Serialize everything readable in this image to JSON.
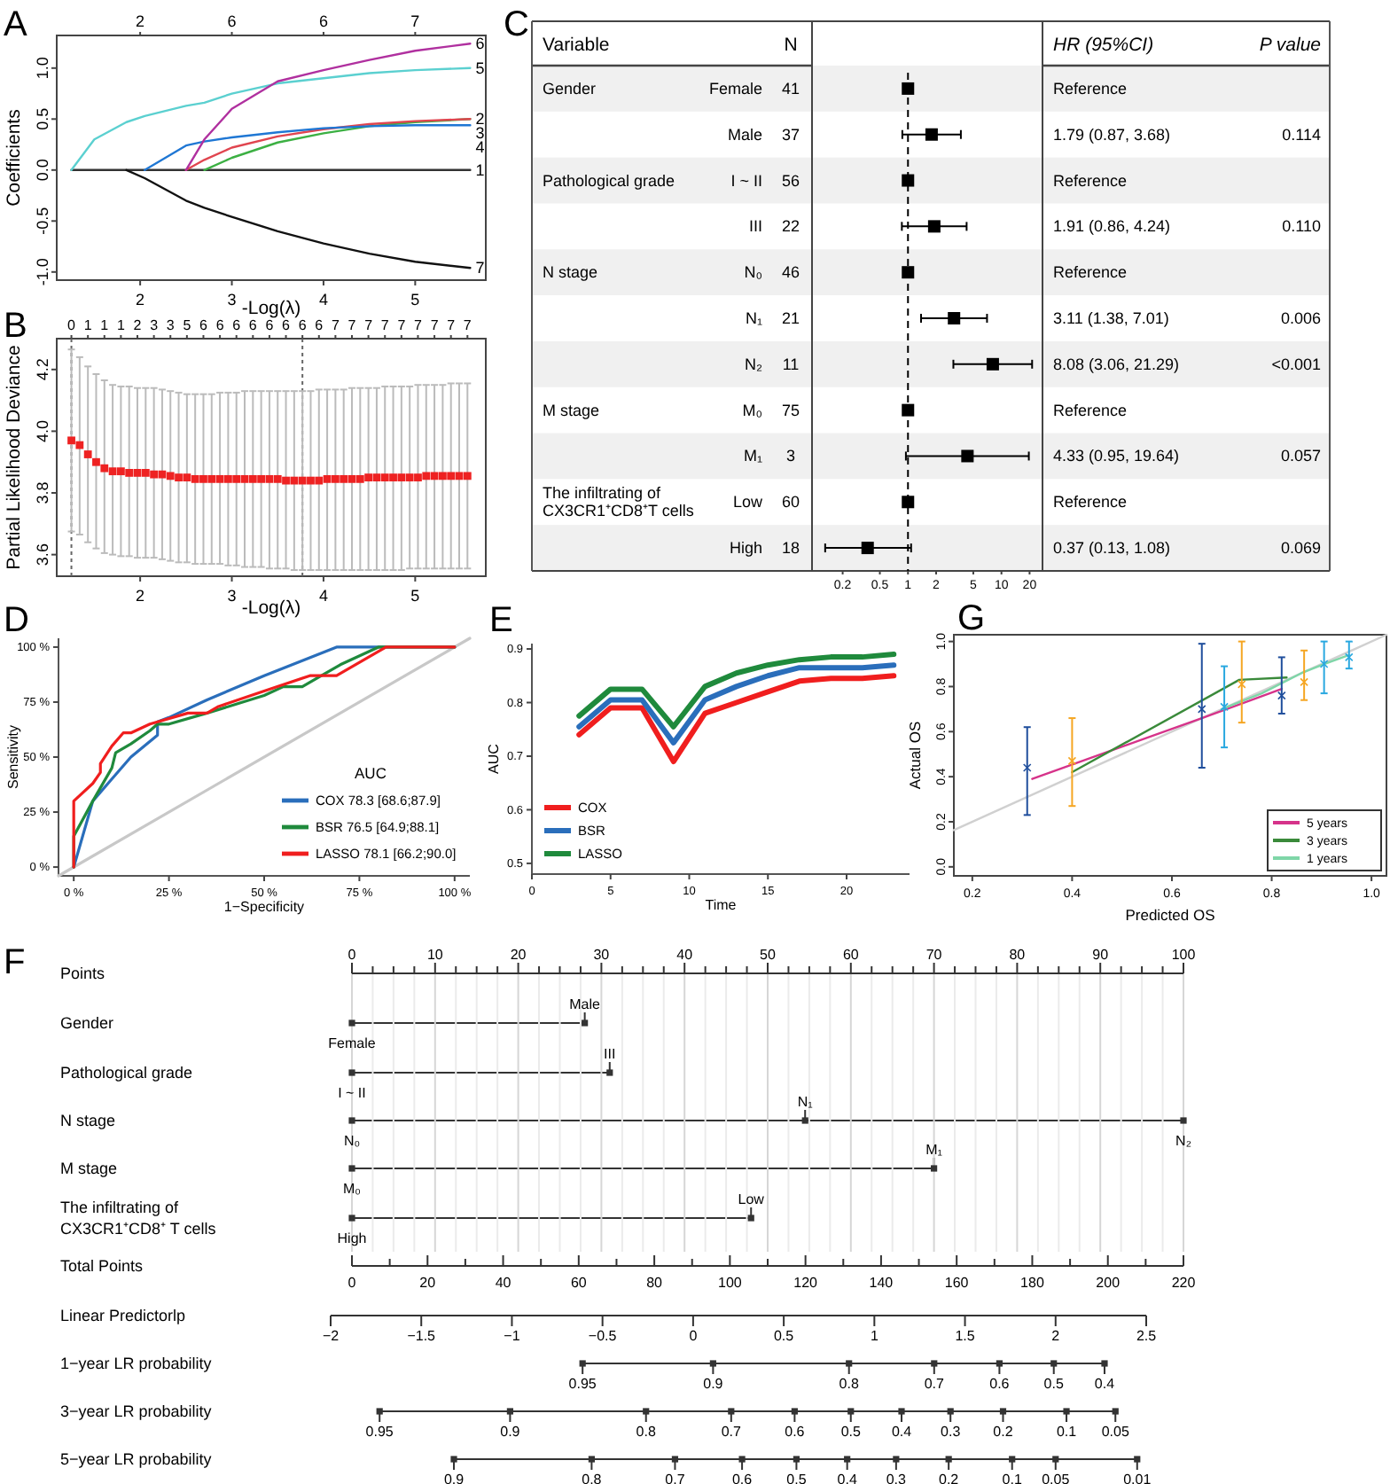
{
  "chart_data": [
    {
      "type": "line",
      "title": "A",
      "xlabel": "-Log(λ)",
      "ylabel": "Coefficients",
      "x": [
        1.25,
        1.5,
        1.85,
        2.05,
        2.5,
        2.7,
        3.0,
        3.5,
        4.0,
        4.5,
        5.0,
        5.6
      ],
      "series": [
        {
          "name": "1",
          "color": "#333333",
          "values": [
            0,
            0,
            0,
            0,
            0,
            0,
            0,
            0,
            0,
            0,
            0,
            0
          ]
        },
        {
          "name": "2",
          "color": "#3cb043",
          "values": [
            null,
            null,
            null,
            null,
            null,
            0,
            0.12,
            0.27,
            0.36,
            0.43,
            0.47,
            0.5
          ]
        },
        {
          "name": "3",
          "color": "#e0454f",
          "values": [
            null,
            null,
            null,
            null,
            0,
            0.1,
            0.22,
            0.33,
            0.4,
            0.45,
            0.48,
            0.5
          ]
        },
        {
          "name": "4",
          "color": "#1f77d4",
          "values": [
            null,
            null,
            null,
            0,
            0.24,
            0.28,
            0.32,
            0.37,
            0.41,
            0.43,
            0.44,
            0.44
          ]
        },
        {
          "name": "5",
          "color": "#5bd0d0",
          "values": [
            0,
            0.3,
            0.47,
            0.53,
            0.63,
            0.66,
            0.75,
            0.85,
            0.9,
            0.95,
            0.98,
            1.0
          ]
        },
        {
          "name": "6",
          "color": "#b0309f",
          "values": [
            null,
            null,
            null,
            null,
            0,
            0.3,
            0.6,
            0.87,
            0.98,
            1.08,
            1.17,
            1.24
          ]
        },
        {
          "name": "7",
          "color": "#111111",
          "values": [
            null,
            null,
            0,
            -0.08,
            -0.3,
            -0.37,
            -0.46,
            -0.6,
            -0.72,
            -0.82,
            -0.9,
            -0.96
          ]
        }
      ],
      "xlim": [
        1.09,
        5.77
      ],
      "ylim": [
        -1.08,
        1.32
      ],
      "xticks": [
        2,
        3,
        4,
        5
      ],
      "yticks": [
        {
          "value": -1,
          "label": "-1.0"
        },
        {
          "value": -0.5,
          "label": "-0.5"
        },
        {
          "value": 0,
          "label": "0.0"
        },
        {
          "value": 0.5,
          "label": "0.5"
        },
        {
          "value": 1,
          "label": "1.0"
        }
      ],
      "annotations": [
        "2",
        "6",
        "6",
        "7"
      ]
    },
    {
      "type": "scatter",
      "title": "B",
      "xlabel": "-Log(λ)",
      "ylabel": "Partial Likelihood Deviance",
      "marker": "square",
      "x": [
        1.25,
        1.34,
        1.43,
        1.52,
        1.61,
        1.7,
        1.79,
        1.88,
        1.97,
        2.06,
        2.15,
        2.24,
        2.33,
        2.42,
        2.51,
        2.6,
        2.69,
        2.78,
        2.87,
        2.96,
        3.05,
        3.14,
        3.23,
        3.32,
        3.41,
        3.5,
        3.59,
        3.68,
        3.77,
        3.86,
        3.95,
        4.04,
        4.13,
        4.22,
        4.31,
        4.4,
        4.49,
        4.58,
        4.67,
        4.76,
        4.85,
        4.94,
        5.03,
        5.12,
        5.21,
        5.3,
        5.39,
        5.48,
        5.57
      ],
      "series": [
        {
          "color": "#ee2222",
          "values": [
            3.97,
            3.955,
            3.925,
            3.9,
            3.88,
            3.87,
            3.87,
            3.865,
            3.865,
            3.865,
            3.86,
            3.86,
            3.855,
            3.85,
            3.85,
            3.845,
            3.845,
            3.845,
            3.845,
            3.845,
            3.845,
            3.845,
            3.845,
            3.845,
            3.845,
            3.845,
            3.84,
            3.84,
            3.84,
            3.84,
            3.84,
            3.845,
            3.845,
            3.845,
            3.845,
            3.845,
            3.85,
            3.85,
            3.85,
            3.85,
            3.85,
            3.85,
            3.85,
            3.855,
            3.855,
            3.855,
            3.855,
            3.855,
            3.855
          ],
          "errors": [
            [
              3.675,
              4.265
            ],
            [
              3.665,
              4.24
            ],
            [
              3.64,
              4.21
            ],
            [
              3.62,
              4.185
            ],
            [
              3.605,
              4.165
            ],
            [
              3.6,
              4.15
            ],
            [
              3.595,
              4.145
            ],
            [
              3.595,
              4.145
            ],
            [
              3.59,
              4.14
            ],
            [
              3.59,
              4.14
            ],
            [
              3.59,
              4.14
            ],
            [
              3.585,
              4.135
            ],
            [
              3.58,
              4.13
            ],
            [
              3.575,
              4.125
            ],
            [
              3.575,
              4.12
            ],
            [
              3.57,
              4.12
            ],
            [
              3.57,
              4.12
            ],
            [
              3.57,
              4.12
            ],
            [
              3.57,
              4.125
            ],
            [
              3.565,
              4.125
            ],
            [
              3.565,
              4.125
            ],
            [
              3.56,
              4.13
            ],
            [
              3.56,
              4.13
            ],
            [
              3.56,
              4.13
            ],
            [
              3.555,
              4.13
            ],
            [
              3.555,
              4.13
            ],
            [
              3.555,
              4.13
            ],
            [
              3.55,
              4.13
            ],
            [
              3.55,
              4.13
            ],
            [
              3.55,
              4.13
            ],
            [
              3.55,
              4.135
            ],
            [
              3.55,
              4.135
            ],
            [
              3.55,
              4.135
            ],
            [
              3.55,
              4.135
            ],
            [
              3.55,
              4.14
            ],
            [
              3.55,
              4.14
            ],
            [
              3.55,
              4.14
            ],
            [
              3.55,
              4.14
            ],
            [
              3.55,
              4.145
            ],
            [
              3.55,
              4.145
            ],
            [
              3.55,
              4.145
            ],
            [
              3.555,
              4.145
            ],
            [
              3.555,
              4.15
            ],
            [
              3.555,
              4.15
            ],
            [
              3.555,
              4.15
            ],
            [
              3.555,
              4.15
            ],
            [
              3.555,
              4.155
            ],
            [
              3.555,
              4.155
            ],
            [
              3.555,
              4.155
            ]
          ]
        }
      ],
      "xlim": [
        1.09,
        5.77
      ],
      "ylim": [
        3.53,
        4.3
      ],
      "xticks": [
        2,
        3,
        4,
        5
      ],
      "yticks": [
        {
          "value": 3.6,
          "label": "3.6"
        },
        {
          "value": 3.8,
          "label": "3.8"
        },
        {
          "value": 4.0,
          "label": "4.0"
        },
        {
          "value": 4.2,
          "label": "4.2"
        }
      ],
      "annotations": [
        "0 1 1 1 2 3 3 5 6 6 6 6 6 6 6 6 7 7 7 7 7 7 7 7 7"
      ],
      "ref_lines": [
        {
          "axis": "x",
          "value": 1.25,
          "line_style": "dotted"
        },
        {
          "axis": "x",
          "value": 3.77,
          "line_style": "dotted"
        }
      ]
    },
    {
      "type": "scatter",
      "title": "C",
      "orientation": "horizontal",
      "log": "x",
      "marker": "square",
      "categories": [
        "Female",
        "Male",
        "I ~ II",
        "III",
        "N₀",
        "N₁",
        "N₂",
        "M₀",
        "M₁",
        "Low",
        "High"
      ],
      "series": [
        {
          "color": "#000000",
          "values": [
            1,
            1.79,
            1,
            1.91,
            1,
            3.11,
            8.08,
            1,
            4.33,
            1,
            0.37
          ],
          "errors": [
            null,
            [
              0.87,
              3.68
            ],
            null,
            [
              0.86,
              4.24
            ],
            null,
            [
              1.38,
              7.01
            ],
            [
              3.06,
              21.29
            ],
            null,
            [
              0.95,
              19.64
            ],
            null,
            [
              0.13,
              1.08
            ]
          ]
        }
      ],
      "xlim": [
        0.094,
        27.5
      ],
      "xticks": [
        0.2,
        0.5,
        1,
        2,
        5,
        10,
        20
      ],
      "ref_lines": [
        {
          "axis": "x",
          "value": 1,
          "line_style": "dashed"
        }
      ],
      "annotations": [
        "Variable",
        "N",
        "HR (95%CI)",
        "P value",
        "Gender",
        "Pathological grade",
        "N stage",
        "M stage",
        "The infiltrating of CX3CR1⁺CD8⁺T cells",
        "41",
        "37",
        "56",
        "22",
        "46",
        "21",
        "11",
        "75",
        "3",
        "60",
        "18",
        "Reference",
        "1.79 (0.87, 3.68)",
        "Reference",
        "1.91 (0.86, 4.24)",
        "Reference",
        "3.11 (1.38, 7.01)",
        "8.08 (3.06, 21.29)",
        "Reference",
        "4.33 (0.95, 19.64)",
        "Reference",
        "0.37 (0.13, 1.08)",
        "0.114",
        "0.110",
        "0.006",
        "<0.001",
        "0.057",
        "0.069"
      ]
    },
    {
      "type": "line",
      "title": "D",
      "xlabel": "1−Specificity",
      "ylabel": "Sensitivity",
      "legend": "bottom right",
      "legend_title": "AUC",
      "series": [
        {
          "color": "#c8c8c8",
          "x": [
            -4,
            104
          ],
          "values": [
            -4,
            104
          ]
        },
        {
          "name": "COX 78.3 [68.6;87.9]",
          "color": "#2a6ebb",
          "x": [
            0,
            2,
            5,
            10,
            15,
            22,
            22,
            25,
            35,
            50,
            69,
            100
          ],
          "values": [
            0,
            12,
            30,
            40,
            50,
            60,
            66,
            68,
            76,
            87,
            100,
            100
          ]
        },
        {
          "name": "BSR 76.5 [64.9;88.1]",
          "color": "#1f8a3c",
          "x": [
            0,
            0,
            5,
            10,
            11,
            15,
            20,
            22,
            25,
            35,
            50,
            55,
            60,
            70,
            80,
            100
          ],
          "values": [
            0,
            14,
            30,
            45,
            52,
            56,
            62,
            65,
            65,
            70,
            78,
            82,
            82,
            92,
            100,
            100
          ]
        },
        {
          "name": "LASSO 78.1 [66.2;90.0]",
          "color": "#f01e1e",
          "x": [
            0,
            0,
            5,
            7,
            7,
            10,
            13,
            15,
            20,
            30,
            35,
            38,
            50,
            62,
            69,
            82,
            100
          ],
          "values": [
            0,
            30,
            38,
            43,
            47,
            55,
            61,
            61,
            65,
            70,
            70,
            73,
            80,
            87,
            87,
            100,
            100
          ]
        }
      ],
      "xlim": [
        -4,
        104
      ],
      "ylim": [
        -4,
        104
      ],
      "xticks": [
        {
          "value": 0,
          "label": "0 %"
        },
        {
          "value": 25,
          "label": "25 %"
        },
        {
          "value": 50,
          "label": "50 %"
        },
        {
          "value": 75,
          "label": "75 %"
        },
        {
          "value": 100,
          "label": "100 %"
        }
      ],
      "yticks": [
        {
          "value": 0,
          "label": "0 %"
        },
        {
          "value": 25,
          "label": "25 %"
        },
        {
          "value": 50,
          "label": "50 %"
        },
        {
          "value": 75,
          "label": "75 %"
        },
        {
          "value": 100,
          "label": "100 %"
        }
      ]
    },
    {
      "type": "line",
      "title": "E",
      "xlabel": "Time",
      "ylabel": "AUC",
      "legend": "bottom left",
      "x": [
        3,
        5,
        7,
        9,
        11,
        13,
        15,
        17,
        19,
        21,
        23
      ],
      "series": [
        {
          "name": "COX",
          "color": "#f01e1e",
          "values": [
            0.74,
            0.79,
            0.79,
            0.69,
            0.78,
            0.8,
            0.82,
            0.84,
            0.845,
            0.845,
            0.85
          ]
        },
        {
          "name": "BSR",
          "color": "#2a6ebb",
          "values": [
            0.755,
            0.805,
            0.805,
            0.725,
            0.805,
            0.83,
            0.85,
            0.865,
            0.865,
            0.865,
            0.87
          ]
        },
        {
          "name": "LASSO",
          "color": "#1f8a3c",
          "values": [
            0.775,
            0.825,
            0.825,
            0.755,
            0.83,
            0.855,
            0.87,
            0.88,
            0.885,
            0.885,
            0.89
          ]
        }
      ],
      "xlim": [
        0,
        24
      ],
      "ylim": [
        0.48,
        0.91
      ],
      "xticks": [
        0,
        5,
        10,
        15,
        20
      ],
      "yticks": [
        {
          "value": 0.5,
          "label": "0.5"
        },
        {
          "value": 0.6,
          "label": "0.6"
        },
        {
          "value": 0.7,
          "label": "0.7"
        },
        {
          "value": 0.8,
          "label": "0.8"
        },
        {
          "value": 0.9,
          "label": "0.9"
        }
      ]
    },
    {
      "type": "line",
      "title": "G",
      "xlabel": "Predicted OS",
      "ylabel": "Actual OS",
      "legend": "bottom right",
      "series": [
        {
          "color": "#d0d0d0",
          "x": [
            0.163,
            1.03
          ],
          "values": [
            0.163,
            1.03
          ]
        },
        {
          "name": "5 years",
          "color": "#d6338a",
          "x": [
            0.32,
            0.66,
            0.82
          ],
          "values": [
            0.39,
            0.66,
            0.79
          ]
        },
        {
          "name": "3 years",
          "color": "#3a8a3a",
          "x": [
            0.4,
            0.735,
            0.83
          ],
          "values": [
            0.42,
            0.83,
            0.84
          ]
        },
        {
          "name": "1 years",
          "color": "#7fd6a8",
          "x": [
            0.7,
            0.78,
            0.86,
            0.905,
            0.955
          ],
          "values": [
            0.7,
            0.77,
            0.86,
            0.9,
            0.94
          ]
        },
        {
          "type": "scatter",
          "marker": "cross",
          "color": "#1f4e9c",
          "x": [
            0.31,
            0.66,
            0.82
          ],
          "values": [
            0.44,
            0.7,
            0.76
          ],
          "errors": [
            [
              0.23,
              0.62
            ],
            [
              0.44,
              0.99
            ],
            [
              0.68,
              0.93
            ]
          ]
        },
        {
          "type": "scatter",
          "marker": "cross",
          "color": "#f5a623",
          "x": [
            0.4,
            0.74,
            0.865
          ],
          "values": [
            0.47,
            0.81,
            0.82
          ],
          "errors": [
            [
              0.27,
              0.66
            ],
            [
              0.64,
              1.0
            ],
            [
              0.74,
              0.96
            ]
          ]
        },
        {
          "type": "scatter",
          "marker": "cross",
          "color": "#29a8e0",
          "x": [
            0.705,
            0.905,
            0.955
          ],
          "values": [
            0.71,
            0.9,
            0.93
          ],
          "errors": [
            [
              0.53,
              0.89
            ],
            [
              0.77,
              1.0
            ],
            [
              0.88,
              1.0
            ]
          ]
        }
      ],
      "xlim": [
        0.163,
        1.03
      ],
      "ylim": [
        -0.04,
        1.03
      ],
      "xticks": [
        {
          "value": 0.2,
          "label": "0.2"
        },
        {
          "value": 0.4,
          "label": "0.4"
        },
        {
          "value": 0.6,
          "label": "0.6"
        },
        {
          "value": 0.8,
          "label": "0.8"
        },
        {
          "value": 1.0,
          "label": "1.0"
        }
      ],
      "yticks": [
        {
          "value": 0,
          "label": "0.0"
        },
        {
          "value": 0.2,
          "label": "0.2"
        },
        {
          "value": 0.4,
          "label": "0.4"
        },
        {
          "value": 0.6,
          "label": "0.6"
        },
        {
          "value": 0.8,
          "label": "0.8"
        },
        {
          "value": 1.0,
          "label": "1.0"
        }
      ]
    },
    {
      "type": "scatter",
      "orientation": "horizontal",
      "title": "F",
      "xlabel": "Points",
      "grid": true,
      "marker": "square",
      "categories": [
        "Gender",
        "Pathological grade",
        "N stage",
        "M stage",
        "The infiltrating of CX3CR1⁺CD8⁺ T cells"
      ],
      "series": [
        {
          "color": "#333333",
          "values": [
            0,
            0,
            0,
            0,
            0
          ]
        },
        {
          "color": "#333333",
          "values": [
            28,
            31,
            54.5,
            70,
            48
          ]
        },
        {
          "color": "#333333",
          "values": [
            null,
            null,
            100,
            null,
            null
          ]
        }
      ],
      "annotations": [
        {
          "text": "Female",
          "x": 0,
          "y": "Gender"
        },
        {
          "text": "Male",
          "x": 28,
          "y": "Gender"
        },
        {
          "text": "I ~ II",
          "x": 0,
          "y": "Pathological grade"
        },
        {
          "text": "III",
          "x": 31,
          "y": "Pathological grade"
        },
        {
          "text": "N₀",
          "x": 0,
          "y": "N stage"
        },
        {
          "text": "N₁",
          "x": 54.5,
          "y": "N stage"
        },
        {
          "text": "N₂",
          "x": 100,
          "y": "N stage"
        },
        {
          "text": "M₀",
          "x": 0,
          "y": "M stage"
        },
        {
          "text": "M₁",
          "x": 70,
          "y": "M stage"
        },
        {
          "text": "High",
          "x": 0,
          "y": "The infiltrating of CX3CR1⁺CD8⁺ T cells"
        },
        {
          "text": "Low",
          "x": 48,
          "y": "The infiltrating of CX3CR1⁺CD8⁺ T cells"
        }
      ],
      "xlim": [
        0,
        100
      ],
      "xticks": [
        0,
        {
          "value": 2.5,
          "label": null
        },
        {
          "value": 5,
          "label": null
        },
        {
          "value": 7.5,
          "label": null
        },
        10,
        {
          "value": 12.5,
          "label": null
        },
        {
          "value": 15,
          "label": null
        },
        {
          "value": 17.5,
          "label": null
        },
        20,
        {
          "value": 22.5,
          "label": null
        },
        {
          "value": 25,
          "label": null
        },
        {
          "value": 27.5,
          "label": null
        },
        30,
        {
          "value": 32.5,
          "label": null
        },
        {
          "value": 35,
          "label": null
        },
        {
          "value": 37.5,
          "label": null
        },
        40,
        {
          "value": 42.5,
          "label": null
        },
        {
          "value": 45,
          "label": null
        },
        {
          "value": 47.5,
          "label": null
        },
        50,
        {
          "value": 52.5,
          "label": null
        },
        {
          "value": 55,
          "label": null
        },
        {
          "value": 57.5,
          "label": null
        },
        60,
        {
          "value": 62.5,
          "label": null
        },
        {
          "value": 65,
          "label": null
        },
        {
          "value": 67.5,
          "label": null
        },
        70,
        {
          "value": 72.5,
          "label": null
        },
        {
          "value": 75,
          "label": null
        },
        {
          "value": 77.5,
          "label": null
        },
        80,
        {
          "value": 82.5,
          "label": null
        },
        {
          "value": 85,
          "label": null
        },
        {
          "value": 87.5,
          "label": null
        },
        90,
        {
          "value": 92.5,
          "label": null
        },
        {
          "value": 95,
          "label": null
        },
        {
          "value": 97.5,
          "label": null
        },
        100
      ],
      "x2label": "Total Points",
      "x2lim": [
        0,
        220
      ],
      "x2ticks": [
        0,
        {
          "value": 10,
          "label": null
        },
        20,
        {
          "value": 30,
          "label": null
        },
        40,
        {
          "value": 50,
          "label": null
        },
        60,
        {
          "value": 70,
          "label": null
        },
        80,
        {
          "value": 90,
          "label": null
        },
        100,
        {
          "value": 110,
          "label": null
        },
        120,
        {
          "value": 130,
          "label": null
        },
        140,
        {
          "value": 150,
          "label": null
        },
        160,
        {
          "value": 170,
          "label": null
        },
        180,
        {
          "value": 190,
          "label": null
        },
        200,
        {
          "value": 210,
          "label": null
        },
        220
      ]
    },
    {
      "type": "scatter",
      "orientation": "horizontal",
      "xlabel": "Linear Predictorlp",
      "marker": "square",
      "categories": [
        "1−year LR probability",
        "3−year LR probability",
        "5−year LR probability"
      ],
      "series": [
        {
          "color": "#333333",
          "values": [
            -0.61,
            -1.73,
            -1.32
          ]
        },
        {
          "color": "#333333",
          "values": [
            0.11,
            -1.01,
            -0.56
          ]
        },
        {
          "color": "#333333",
          "values": [
            0.86,
            -0.26,
            -0.1
          ]
        },
        {
          "color": "#333333",
          "values": [
            1.33,
            0.21,
            0.27
          ]
        },
        {
          "color": "#333333",
          "values": [
            1.69,
            0.56,
            0.57
          ]
        },
        {
          "color": "#333333",
          "values": [
            1.99,
            0.87,
            0.85
          ]
        },
        {
          "color": "#333333",
          "values": [
            2.27,
            1.15,
            1.12
          ]
        },
        {
          "color": "#333333",
          "values": [
            null,
            1.42,
            1.41
          ]
        },
        {
          "color": "#333333",
          "values": [
            null,
            1.71,
            1.76
          ]
        },
        {
          "color": "#333333",
          "values": [
            null,
            2.06,
            2.0
          ]
        },
        {
          "color": "#333333",
          "values": [
            null,
            2.33,
            2.45
          ]
        }
      ],
      "annotations": [
        {
          "text": "0.95",
          "x": -0.61,
          "y": "1−year LR probability"
        },
        {
          "text": "0.9",
          "x": 0.11,
          "y": "1−year LR probability"
        },
        {
          "text": "0.8",
          "x": 0.86,
          "y": "1−year LR probability"
        },
        {
          "text": "0.7",
          "x": 1.33,
          "y": "1−year LR probability"
        },
        {
          "text": "0.6",
          "x": 1.69,
          "y": "1−year LR probability"
        },
        {
          "text": "0.5",
          "x": 1.99,
          "y": "1−year LR probability"
        },
        {
          "text": "0.4",
          "x": 2.27,
          "y": "1−year LR probability"
        },
        {
          "text": "0.95",
          "x": -1.73,
          "y": "3−year LR probability"
        },
        {
          "text": "0.9",
          "x": -1.01,
          "y": "3−year LR probability"
        },
        {
          "text": "0.8",
          "x": -0.26,
          "y": "3−year LR probability"
        },
        {
          "text": "0.7",
          "x": 0.21,
          "y": "3−year LR probability"
        },
        {
          "text": "0.6",
          "x": 0.56,
          "y": "3−year LR probability"
        },
        {
          "text": "0.5",
          "x": 0.87,
          "y": "3−year LR probability"
        },
        {
          "text": "0.4",
          "x": 1.15,
          "y": "3−year LR probability"
        },
        {
          "text": "0.3",
          "x": 1.42,
          "y": "3−year LR probability"
        },
        {
          "text": "0.2",
          "x": 1.71,
          "y": "3−year LR probability"
        },
        {
          "text": "0.1",
          "x": 2.06,
          "y": "3−year LR probability"
        },
        {
          "text": "0.05",
          "x": 2.33,
          "y": "3−year LR probability"
        },
        {
          "text": "0.9",
          "x": -1.32,
          "y": "5−year LR probability"
        },
        {
          "text": "0.8",
          "x": -0.56,
          "y": "5−year LR probability"
        },
        {
          "text": "0.7",
          "x": -0.1,
          "y": "5−year LR probability"
        },
        {
          "text": "0.6",
          "x": 0.27,
          "y": "5−year LR probability"
        },
        {
          "text": "0.5",
          "x": 0.57,
          "y": "5−year LR probability"
        },
        {
          "text": "0.4",
          "x": 0.85,
          "y": "5−year LR probability"
        },
        {
          "text": "0.3",
          "x": 1.12,
          "y": "5−year LR probability"
        },
        {
          "text": "0.2",
          "x": 1.41,
          "y": "5−year LR probability"
        },
        {
          "text": "0.1",
          "x": 1.76,
          "y": "5−year LR probability"
        },
        {
          "text": "0.05",
          "x": 2.0,
          "y": "5−year LR probability"
        },
        {
          "text": "0.01",
          "x": 2.45,
          "y": "5−year LR probability"
        }
      ],
      "xlim": [
        -2,
        2.5
      ],
      "xticks": [
        {
          "value": -2,
          "label": "−2"
        },
        {
          "value": -1.5,
          "label": "−1.5"
        },
        {
          "value": -1,
          "label": "−1"
        },
        {
          "value": -0.5,
          "label": "−0.5"
        },
        0,
        0.5,
        1,
        1.5,
        2,
        2.5
      ]
    }
  ]
}
